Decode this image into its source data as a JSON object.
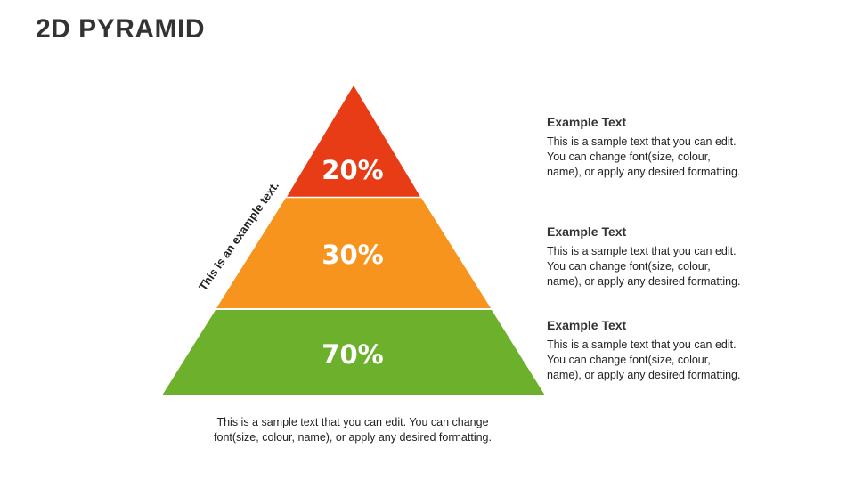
{
  "title": "2D PYRAMID",
  "pyramid": {
    "levels": [
      {
        "label": "20%",
        "color": "#e83c17"
      },
      {
        "label": "30%",
        "color": "#f7941d"
      },
      {
        "label": "70%",
        "color": "#6cb02b"
      }
    ]
  },
  "side_label": "This is an example text.",
  "info_blocks": [
    {
      "heading": "Example Text",
      "lines": [
        "This is a sample text that you can edit.",
        "You can change font(size, colour,",
        "name), or apply any desired formatting."
      ]
    },
    {
      "heading": "Example Text",
      "lines": [
        "This is a sample text that you can edit.",
        "You can change font(size, colour,",
        "name), or apply any desired formatting."
      ]
    },
    {
      "heading": "Example Text",
      "lines": [
        "This is a sample text that you can edit.",
        "You can change font(size, colour,",
        "name), or apply any desired formatting."
      ]
    }
  ],
  "caption": {
    "lines": [
      "This is a sample text that you can edit. You can change",
      "font(size, colour, name), or apply any desired formatting."
    ]
  }
}
